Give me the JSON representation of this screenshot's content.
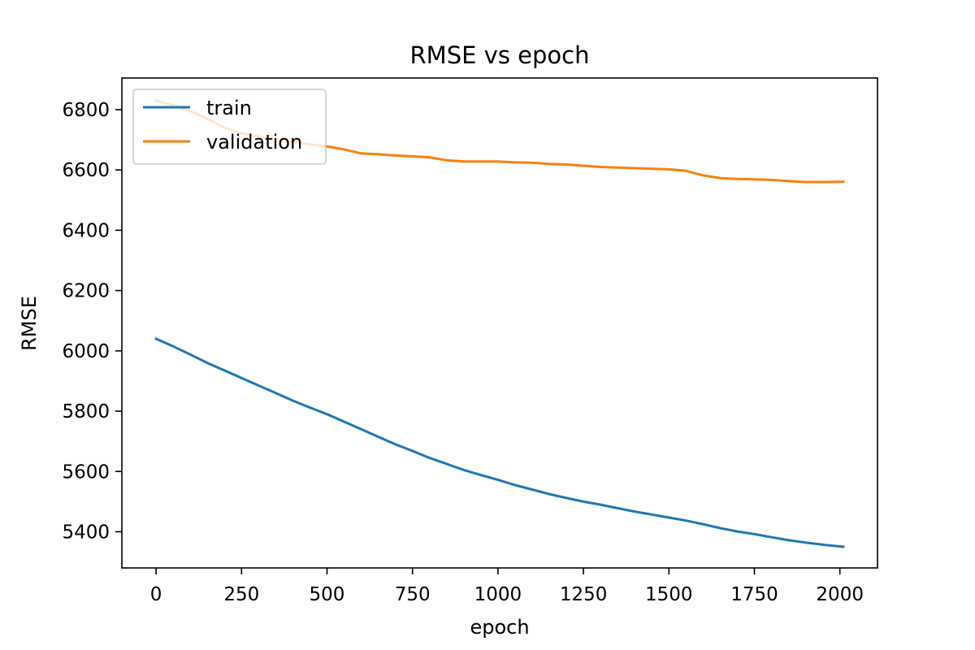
{
  "chart_data": {
    "type": "line",
    "title": "RMSE vs epoch",
    "xlabel": "epoch",
    "ylabel": "RMSE",
    "xlim": [
      -100,
      2110
    ],
    "ylim": [
      5280,
      6905
    ],
    "xticks": [
      0,
      250,
      500,
      750,
      1000,
      1250,
      1500,
      1750,
      2000
    ],
    "yticks": [
      5400,
      5600,
      5800,
      6000,
      6200,
      6400,
      6600,
      6800
    ],
    "grid": false,
    "legend_position": "upper-left",
    "series": [
      {
        "name": "train",
        "color": "#1f77b4",
        "x": [
          0,
          50,
          100,
          150,
          200,
          250,
          300,
          350,
          400,
          450,
          500,
          550,
          600,
          650,
          700,
          750,
          800,
          850,
          900,
          950,
          1000,
          1050,
          1100,
          1150,
          1200,
          1250,
          1300,
          1350,
          1400,
          1450,
          1500,
          1550,
          1600,
          1650,
          1700,
          1750,
          1800,
          1850,
          1900,
          1950,
          2010
        ],
        "y": [
          6040,
          6015,
          5988,
          5960,
          5935,
          5910,
          5885,
          5860,
          5835,
          5812,
          5790,
          5765,
          5740,
          5715,
          5690,
          5668,
          5645,
          5625,
          5605,
          5588,
          5572,
          5555,
          5540,
          5525,
          5512,
          5500,
          5490,
          5478,
          5467,
          5457,
          5447,
          5437,
          5425,
          5412,
          5401,
          5392,
          5382,
          5372,
          5364,
          5357,
          5350
        ]
      },
      {
        "name": "validation",
        "color": "#ff7f0e",
        "x": [
          0,
          50,
          100,
          150,
          200,
          250,
          300,
          350,
          400,
          450,
          500,
          550,
          600,
          650,
          700,
          750,
          800,
          850,
          900,
          950,
          1000,
          1050,
          1100,
          1150,
          1200,
          1250,
          1300,
          1350,
          1400,
          1450,
          1500,
          1550,
          1600,
          1650,
          1700,
          1750,
          1800,
          1850,
          1900,
          1950,
          2010
        ],
        "y": [
          6830,
          6815,
          6795,
          6770,
          6740,
          6722,
          6710,
          6700,
          6692,
          6685,
          6678,
          6668,
          6655,
          6652,
          6648,
          6645,
          6642,
          6632,
          6628,
          6628,
          6628,
          6625,
          6624,
          6620,
          6618,
          6614,
          6610,
          6608,
          6606,
          6604,
          6602,
          6597,
          6582,
          6573,
          6570,
          6569,
          6567,
          6563,
          6560,
          6560,
          6561
        ]
      }
    ]
  }
}
